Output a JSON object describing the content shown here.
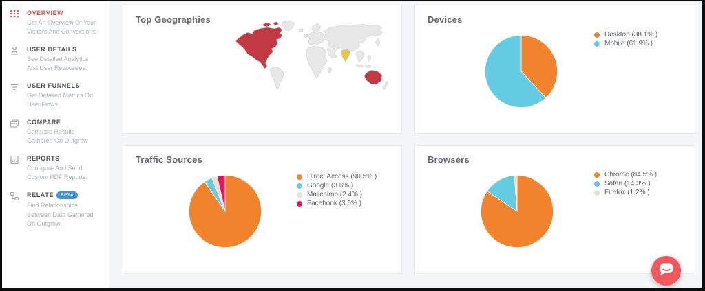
{
  "sidebar": {
    "items": [
      {
        "label": "OVERVIEW",
        "description": "Get An Overview Of Your Visitors And Conversions.",
        "icon": "grid-dots-icon",
        "active": true
      },
      {
        "label": "USER DETAILS",
        "description": "See Detailed Analytics And User Responses.",
        "icon": "user-icon",
        "active": false
      },
      {
        "label": "USER FUNNELS",
        "description": "Get Detailed Metrics On User Flows.",
        "icon": "funnel-icon",
        "active": false
      },
      {
        "label": "COMPARE",
        "description": "Compare Results Gathered On Outgrow",
        "icon": "compare-icon",
        "active": false
      },
      {
        "label": "REPORTS",
        "description": "Configure And Send Custom PDF Reports.",
        "icon": "reports-icon",
        "active": false
      },
      {
        "label": "RELATE",
        "badge": "BETA",
        "description": "Find Relationships Between Data Gathered On Outgrow.",
        "icon": "relate-icon",
        "active": false
      }
    ],
    "colors": {
      "active": "#e2544a",
      "title": "#4b4e52",
      "description": "#a9b3bc",
      "badge_bg": "#3f93d8"
    }
  },
  "chart_data": [
    {
      "id": "top-geographies",
      "type": "map",
      "title": "Top Geographies",
      "highlighted_regions": [
        {
          "region": "North America",
          "color": "#c13a43"
        },
        {
          "region": "India",
          "color": "#edc53c"
        },
        {
          "region": "Australia",
          "color": "#c13a43"
        }
      ]
    },
    {
      "id": "devices",
      "type": "pie",
      "title": "Devices",
      "legend_position": "right",
      "series": [
        {
          "name": "Desktop",
          "value": 38.1,
          "color": "#f0832b",
          "label": "Desktop (38.1% )"
        },
        {
          "name": "Mobile",
          "value": 61.9,
          "color": "#63cbe2",
          "label": "Mobile (61.9% )"
        }
      ]
    },
    {
      "id": "traffic-sources",
      "type": "pie",
      "title": "Traffic Sources",
      "legend_position": "right",
      "series": [
        {
          "name": "Direct Access",
          "value": 90.5,
          "color": "#f0832b",
          "label": "Direct Access (90.5% )"
        },
        {
          "name": "Google",
          "value": 3.6,
          "color": "#63cbe2",
          "label": "Google (3.6% )"
        },
        {
          "name": "Mailchimp",
          "value": 2.4,
          "color": "#e3e1d3",
          "label": "Mailchimp (2.4% )"
        },
        {
          "name": "Facebook",
          "value": 3.6,
          "color": "#e31662",
          "label": "Facebook (3.6% )"
        }
      ]
    },
    {
      "id": "browsers",
      "type": "pie",
      "title": "Browsers",
      "legend_position": "right",
      "series": [
        {
          "name": "Chrome",
          "value": 84.5,
          "color": "#f0832b",
          "label": "Chrome (84.5% )"
        },
        {
          "name": "Safari",
          "value": 14.3,
          "color": "#63cbe2",
          "label": "Safari (14.3% )"
        },
        {
          "name": "Firefox",
          "value": 1.2,
          "color": "#e3e1d3",
          "label": "Firefox (1.2% )"
        }
      ]
    }
  ],
  "geo": {
    "default_color": "#e7e7e7",
    "stroke_color": "#d4d4d4",
    "region_colors": {
      "north-america": "#c13a43",
      "india": "#edc53c",
      "australia": "#c13a43"
    }
  },
  "chat": {
    "bubble_color": "#f4565e",
    "icon": "chat-bubble-icon"
  }
}
